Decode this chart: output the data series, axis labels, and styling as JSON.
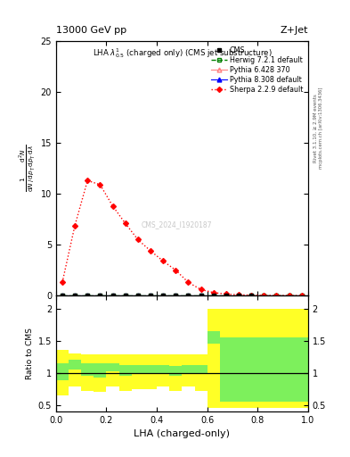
{
  "title_left": "13000 GeV pp",
  "title_right": "Z+Jet",
  "plot_title": "LHA $\\lambda^{1}_{0.5}$ (charged only) (CMS jet substructure)",
  "watermark": "CMS_2024_I1920187",
  "right_label": "Rivet 3.1.10, ≥ 2.9M events",
  "right_label2": "mcplots.cern.ch [arXiv:1306.3436]",
  "sherpa_x": [
    0.025,
    0.075,
    0.125,
    0.175,
    0.225,
    0.275,
    0.325,
    0.375,
    0.425,
    0.475,
    0.525,
    0.575,
    0.625,
    0.675,
    0.725,
    0.775,
    0.825,
    0.875,
    0.925,
    0.975
  ],
  "sherpa_y": [
    1.3,
    6.9,
    11.3,
    10.9,
    8.8,
    7.1,
    5.5,
    4.4,
    3.4,
    2.5,
    1.3,
    0.6,
    0.3,
    0.15,
    0.08,
    0.05,
    0.02,
    0.01,
    0.005,
    0.002
  ],
  "cms_x": [
    0.025,
    0.075,
    0.125,
    0.175,
    0.225,
    0.275,
    0.325,
    0.375,
    0.425,
    0.475,
    0.525,
    0.575,
    0.625,
    0.675,
    0.725,
    0.775
  ],
  "cms_y": [
    0.0,
    0.0,
    0.0,
    0.0,
    0.0,
    0.0,
    0.0,
    0.0,
    0.0,
    0.0,
    0.0,
    0.0,
    0.0,
    0.0,
    0.0,
    0.0
  ],
  "herwig_x": [
    0.025,
    0.075,
    0.125,
    0.175,
    0.225,
    0.275,
    0.325,
    0.375,
    0.425,
    0.475,
    0.525,
    0.575,
    0.625,
    0.675,
    0.725,
    0.775,
    0.825,
    0.875,
    0.925,
    0.975
  ],
  "herwig_y": [
    0.0,
    0.0,
    0.0,
    0.0,
    0.0,
    0.0,
    0.0,
    0.0,
    0.0,
    0.0,
    0.0,
    0.0,
    0.0,
    0.0,
    0.0,
    0.0,
    0.0,
    0.0,
    0.0,
    0.0
  ],
  "pythia6_x": [
    0.025,
    0.075,
    0.125,
    0.175,
    0.225,
    0.275,
    0.325,
    0.375,
    0.425,
    0.475,
    0.525,
    0.575,
    0.625,
    0.675,
    0.725,
    0.775,
    0.825,
    0.875,
    0.925,
    0.975
  ],
  "pythia6_y": [
    0.0,
    0.0,
    0.0,
    0.0,
    0.0,
    0.0,
    0.0,
    0.0,
    0.0,
    0.0,
    0.0,
    0.0,
    0.0,
    0.0,
    0.0,
    0.0,
    0.0,
    0.0,
    0.0,
    0.0
  ],
  "pythia8_x": [
    0.025,
    0.075,
    0.125,
    0.175,
    0.225,
    0.275,
    0.325,
    0.375,
    0.425,
    0.475,
    0.525,
    0.575,
    0.625,
    0.675,
    0.725,
    0.775,
    0.825,
    0.875,
    0.925,
    0.975
  ],
  "pythia8_y": [
    0.0,
    0.0,
    0.0,
    0.0,
    0.0,
    0.0,
    0.0,
    0.0,
    0.0,
    0.0,
    0.0,
    0.0,
    0.0,
    0.0,
    0.0,
    0.0,
    0.0,
    0.0,
    0.0,
    0.0
  ],
  "ratio_bin_edges": [
    0.0,
    0.05,
    0.1,
    0.15,
    0.2,
    0.25,
    0.3,
    0.35,
    0.4,
    0.45,
    0.5,
    0.55,
    0.6,
    0.65,
    1.0
  ],
  "ratio_green_low": [
    0.88,
    1.05,
    0.95,
    0.92,
    1.02,
    0.95,
    1.0,
    0.98,
    1.0,
    0.95,
    1.0,
    1.0,
    1.45,
    0.55
  ],
  "ratio_green_high": [
    1.15,
    1.2,
    1.15,
    1.15,
    1.15,
    1.12,
    1.12,
    1.12,
    1.12,
    1.1,
    1.12,
    1.12,
    1.65,
    1.55
  ],
  "ratio_yellow_low": [
    0.65,
    0.78,
    0.72,
    0.7,
    0.78,
    0.72,
    0.75,
    0.75,
    0.78,
    0.72,
    0.78,
    0.72,
    0.45,
    0.45
  ],
  "ratio_yellow_high": [
    1.35,
    1.3,
    1.28,
    1.28,
    1.28,
    1.28,
    1.28,
    1.28,
    1.28,
    1.28,
    1.28,
    1.28,
    2.0,
    2.0
  ],
  "ylim_main": [
    0,
    25
  ],
  "ylim_ratio": [
    0.4,
    2.2
  ],
  "yticks_ratio": [
    0.5,
    1.0,
    1.5,
    2.0
  ],
  "xlim": [
    0.0,
    1.0
  ]
}
